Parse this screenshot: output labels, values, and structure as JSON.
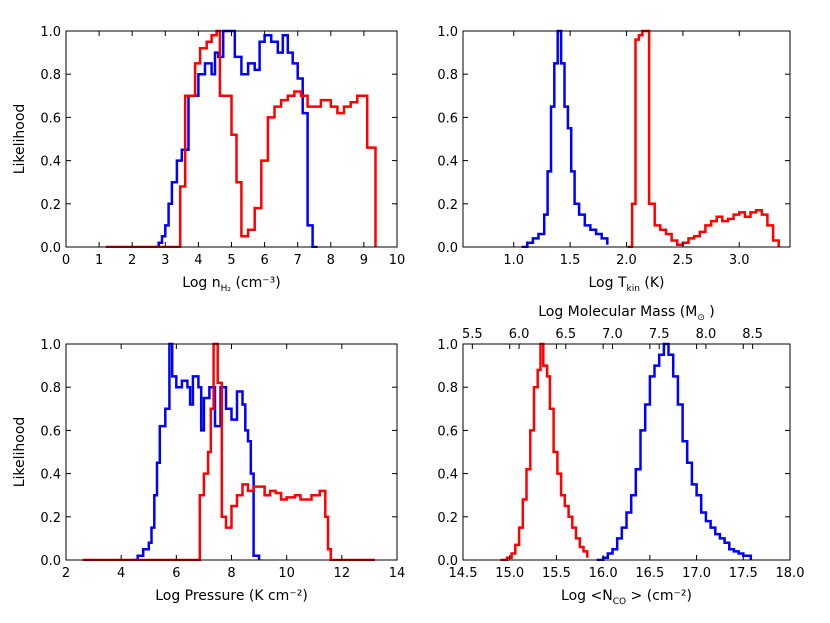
{
  "chart_data": [
    {
      "panel": "top-left",
      "type": "step",
      "xlabel": {
        "main": "Log n",
        "sub": "H₂",
        "units": "(cm⁻³)"
      },
      "ylabel": "Likelihood",
      "xlim": [
        0,
        10
      ],
      "ylim": [
        0,
        1
      ],
      "xticks": [
        "0",
        "1",
        "2",
        "3",
        "4",
        "5",
        "6",
        "7",
        "8",
        "9",
        "10"
      ],
      "yticks": [
        "0.0",
        "0.2",
        "0.4",
        "0.6",
        "0.8",
        "1.0"
      ],
      "series": [
        {
          "name": "blue",
          "color": "#0000ff",
          "points": [
            [
              2.7,
              0
            ],
            [
              2.8,
              0.02
            ],
            [
              2.9,
              0.05
            ],
            [
              3.0,
              0.1
            ],
            [
              3.1,
              0.2
            ],
            [
              3.2,
              0.3
            ],
            [
              3.35,
              0.4
            ],
            [
              3.5,
              0.45
            ],
            [
              3.7,
              0.7
            ],
            [
              3.9,
              0.7
            ],
            [
              4.0,
              0.8
            ],
            [
              4.2,
              0.85
            ],
            [
              4.4,
              0.8
            ],
            [
              4.5,
              0.9
            ],
            [
              4.6,
              0.88
            ],
            [
              4.75,
              1.0
            ],
            [
              4.9,
              1.0
            ],
            [
              5.1,
              0.88
            ],
            [
              5.3,
              0.8
            ],
            [
              5.5,
              0.85
            ],
            [
              5.7,
              0.82
            ],
            [
              5.85,
              0.95
            ],
            [
              6.0,
              0.98
            ],
            [
              6.2,
              0.95
            ],
            [
              6.4,
              0.9
            ],
            [
              6.55,
              0.98
            ],
            [
              6.7,
              0.9
            ],
            [
              6.85,
              0.85
            ],
            [
              7.0,
              0.78
            ],
            [
              7.15,
              0.62
            ],
            [
              7.3,
              0.1
            ],
            [
              7.45,
              0.0
            ],
            [
              7.6,
              0.0
            ]
          ]
        },
        {
          "name": "red",
          "color": "#ff0000",
          "points": [
            [
              1.2,
              0
            ],
            [
              3.3,
              0
            ],
            [
              3.45,
              0.28
            ],
            [
              3.6,
              0.7
            ],
            [
              3.8,
              0.7
            ],
            [
              3.9,
              0.85
            ],
            [
              4.05,
              0.92
            ],
            [
              4.25,
              0.95
            ],
            [
              4.4,
              0.98
            ],
            [
              4.55,
              1.0
            ],
            [
              4.65,
              0.7
            ],
            [
              4.9,
              0.7
            ],
            [
              5.0,
              0.52
            ],
            [
              5.15,
              0.3
            ],
            [
              5.3,
              0.05
            ],
            [
              5.5,
              0.08
            ],
            [
              5.7,
              0.18
            ],
            [
              5.9,
              0.4
            ],
            [
              6.1,
              0.6
            ],
            [
              6.3,
              0.65
            ],
            [
              6.5,
              0.68
            ],
            [
              6.7,
              0.7
            ],
            [
              6.9,
              0.72
            ],
            [
              7.1,
              0.7
            ],
            [
              7.3,
              0.65
            ],
            [
              7.5,
              0.65
            ],
            [
              7.7,
              0.68
            ],
            [
              8.0,
              0.65
            ],
            [
              8.2,
              0.62
            ],
            [
              8.4,
              0.65
            ],
            [
              8.6,
              0.67
            ],
            [
              8.8,
              0.7
            ],
            [
              9.1,
              0.46
            ],
            [
              9.35,
              0.0
            ]
          ]
        }
      ]
    },
    {
      "panel": "top-right",
      "type": "step",
      "xlabel": {
        "main": "Log T",
        "sub": "kin",
        "units": "(K)"
      },
      "xlim": [
        0.55,
        3.45
      ],
      "ylim": [
        0,
        1
      ],
      "xticks": [
        "1.0",
        "1.5",
        "2.0",
        "2.5",
        "3.0"
      ],
      "yticks": [
        "0.0",
        "0.2",
        "0.4",
        "0.6",
        "0.8",
        "1.0"
      ],
      "series": [
        {
          "name": "blue",
          "color": "#0000ff",
          "points": [
            [
              1.07,
              0
            ],
            [
              1.12,
              0.02
            ],
            [
              1.17,
              0.04
            ],
            [
              1.22,
              0.06
            ],
            [
              1.27,
              0.15
            ],
            [
              1.3,
              0.35
            ],
            [
              1.33,
              0.65
            ],
            [
              1.36,
              0.85
            ],
            [
              1.39,
              1.0
            ],
            [
              1.42,
              0.85
            ],
            [
              1.45,
              0.65
            ],
            [
              1.48,
              0.55
            ],
            [
              1.51,
              0.35
            ],
            [
              1.54,
              0.2
            ],
            [
              1.58,
              0.15
            ],
            [
              1.63,
              0.1
            ],
            [
              1.68,
              0.08
            ],
            [
              1.73,
              0.06
            ],
            [
              1.78,
              0.04
            ],
            [
              1.83,
              0.01
            ]
          ]
        },
        {
          "name": "red",
          "color": "#ff0000",
          "points": [
            [
              2.01,
              0
            ],
            [
              2.05,
              0.2
            ],
            [
              2.08,
              0.96
            ],
            [
              2.11,
              0.98
            ],
            [
              2.14,
              1.0
            ],
            [
              2.17,
              1.0
            ],
            [
              2.2,
              0.2
            ],
            [
              2.25,
              0.1
            ],
            [
              2.3,
              0.08
            ],
            [
              2.35,
              0.06
            ],
            [
              2.4,
              0.03
            ],
            [
              2.45,
              0.01
            ],
            [
              2.5,
              0.02
            ],
            [
              2.55,
              0.04
            ],
            [
              2.6,
              0.05
            ],
            [
              2.65,
              0.07
            ],
            [
              2.7,
              0.1
            ],
            [
              2.75,
              0.12
            ],
            [
              2.8,
              0.14
            ],
            [
              2.85,
              0.12
            ],
            [
              2.9,
              0.13
            ],
            [
              2.95,
              0.15
            ],
            [
              3.0,
              0.16
            ],
            [
              3.05,
              0.14
            ],
            [
              3.1,
              0.16
            ],
            [
              3.15,
              0.17
            ],
            [
              3.2,
              0.15
            ],
            [
              3.25,
              0.1
            ],
            [
              3.3,
              0.03
            ],
            [
              3.35,
              0.0
            ]
          ]
        }
      ]
    },
    {
      "panel": "bottom-left",
      "type": "step",
      "xlabel": {
        "main": "Log Pressure (K cm⁻²)"
      },
      "ylabel": "Likelihood",
      "xlim": [
        2,
        14
      ],
      "ylim": [
        0,
        1
      ],
      "xticks": [
        "2",
        "4",
        "6",
        "8",
        "10",
        "12",
        "14"
      ],
      "yticks": [
        "0.0",
        "0.2",
        "0.4",
        "0.6",
        "0.8",
        "1.0"
      ],
      "series": [
        {
          "name": "blue",
          "color": "#0000ff",
          "points": [
            [
              4.4,
              0
            ],
            [
              4.6,
              0.02
            ],
            [
              4.8,
              0.05
            ],
            [
              5.0,
              0.08
            ],
            [
              5.1,
              0.15
            ],
            [
              5.2,
              0.3
            ],
            [
              5.3,
              0.45
            ],
            [
              5.4,
              0.62
            ],
            [
              5.6,
              0.7
            ],
            [
              5.75,
              1.0
            ],
            [
              5.85,
              0.85
            ],
            [
              6.0,
              0.8
            ],
            [
              6.2,
              0.83
            ],
            [
              6.4,
              0.8
            ],
            [
              6.5,
              0.72
            ],
            [
              6.6,
              0.85
            ],
            [
              6.8,
              0.8
            ],
            [
              6.9,
              0.6
            ],
            [
              7.0,
              0.75
            ],
            [
              7.2,
              0.8
            ],
            [
              7.4,
              0.62
            ],
            [
              7.6,
              0.8
            ],
            [
              7.8,
              0.7
            ],
            [
              8.0,
              0.65
            ],
            [
              8.2,
              0.78
            ],
            [
              8.4,
              0.72
            ],
            [
              8.5,
              0.6
            ],
            [
              8.6,
              0.55
            ],
            [
              8.7,
              0.4
            ],
            [
              8.8,
              0.02
            ],
            [
              9.0,
              0.0
            ]
          ]
        },
        {
          "name": "red",
          "color": "#ff0000",
          "points": [
            [
              2.6,
              0
            ],
            [
              6.7,
              0
            ],
            [
              6.85,
              0.3
            ],
            [
              7.0,
              0.4
            ],
            [
              7.15,
              0.5
            ],
            [
              7.25,
              0.7
            ],
            [
              7.35,
              1.0
            ],
            [
              7.5,
              0.82
            ],
            [
              7.65,
              0.2
            ],
            [
              7.8,
              0.15
            ],
            [
              8.0,
              0.25
            ],
            [
              8.2,
              0.3
            ],
            [
              8.4,
              0.35
            ],
            [
              8.6,
              0.32
            ],
            [
              8.8,
              0.34
            ],
            [
              9.0,
              0.34
            ],
            [
              9.2,
              0.3
            ],
            [
              9.4,
              0.32
            ],
            [
              9.6,
              0.31
            ],
            [
              9.8,
              0.28
            ],
            [
              10.0,
              0.29
            ],
            [
              10.3,
              0.3
            ],
            [
              10.5,
              0.28
            ],
            [
              10.7,
              0.28
            ],
            [
              10.9,
              0.3
            ],
            [
              11.2,
              0.32
            ],
            [
              11.4,
              0.2
            ],
            [
              11.5,
              0.05
            ],
            [
              11.6,
              0.0
            ],
            [
              13.2,
              0.0
            ]
          ]
        }
      ]
    },
    {
      "panel": "bottom-right",
      "type": "step",
      "xlabel": {
        "main": "Log <N",
        "sub": "CO",
        "units": "> (cm⁻²)"
      },
      "top_xlabel": {
        "main": "Log Molecular Mass (M",
        "sub": "⊙",
        "units": ")"
      },
      "xlim": [
        14.5,
        18.0
      ],
      "ylim": [
        0,
        1
      ],
      "xticks": [
        "14.5",
        "15.0",
        "15.5",
        "16.0",
        "16.5",
        "17.0",
        "17.5",
        "18.0"
      ],
      "top_xticks": [
        "5.5",
        "6.0",
        "6.5",
        "7.0",
        "7.5",
        "8.0",
        "8.5"
      ],
      "top_xtick_positions": [
        14.6,
        15.1,
        15.6,
        16.1,
        16.6,
        17.1,
        17.6
      ],
      "yticks": [
        "0.0",
        "0.2",
        "0.4",
        "0.6",
        "0.8",
        "1.0"
      ],
      "series": [
        {
          "name": "red",
          "color": "#ff0000",
          "points": [
            [
              14.9,
              0
            ],
            [
              14.97,
              0.01
            ],
            [
              15.02,
              0.03
            ],
            [
              15.06,
              0.07
            ],
            [
              15.1,
              0.15
            ],
            [
              15.14,
              0.28
            ],
            [
              15.18,
              0.42
            ],
            [
              15.22,
              0.6
            ],
            [
              15.26,
              0.8
            ],
            [
              15.3,
              0.88
            ],
            [
              15.33,
              1.0
            ],
            [
              15.36,
              0.9
            ],
            [
              15.4,
              0.85
            ],
            [
              15.43,
              0.7
            ],
            [
              15.47,
              0.5
            ],
            [
              15.51,
              0.4
            ],
            [
              15.55,
              0.3
            ],
            [
              15.59,
              0.25
            ],
            [
              15.63,
              0.2
            ],
            [
              15.67,
              0.15
            ],
            [
              15.71,
              0.1
            ],
            [
              15.75,
              0.06
            ],
            [
              15.79,
              0.04
            ],
            [
              15.83,
              0.01
            ]
          ]
        },
        {
          "name": "blue",
          "color": "#0000ff",
          "points": [
            [
              15.93,
              0
            ],
            [
              16.0,
              0.01
            ],
            [
              16.05,
              0.03
            ],
            [
              16.1,
              0.05
            ],
            [
              16.15,
              0.1
            ],
            [
              16.2,
              0.15
            ],
            [
              16.25,
              0.22
            ],
            [
              16.3,
              0.3
            ],
            [
              16.35,
              0.42
            ],
            [
              16.4,
              0.6
            ],
            [
              16.45,
              0.72
            ],
            [
              16.5,
              0.85
            ],
            [
              16.55,
              0.9
            ],
            [
              16.6,
              0.95
            ],
            [
              16.65,
              1.0
            ],
            [
              16.7,
              0.95
            ],
            [
              16.75,
              0.85
            ],
            [
              16.8,
              0.72
            ],
            [
              16.85,
              0.55
            ],
            [
              16.9,
              0.45
            ],
            [
              16.95,
              0.35
            ],
            [
              17.0,
              0.3
            ],
            [
              17.05,
              0.22
            ],
            [
              17.1,
              0.18
            ],
            [
              17.15,
              0.15
            ],
            [
              17.2,
              0.12
            ],
            [
              17.25,
              0.1
            ],
            [
              17.3,
              0.08
            ],
            [
              17.35,
              0.05
            ],
            [
              17.4,
              0.04
            ],
            [
              17.45,
              0.03
            ],
            [
              17.5,
              0.02
            ],
            [
              17.58,
              0.0
            ]
          ]
        }
      ]
    }
  ]
}
